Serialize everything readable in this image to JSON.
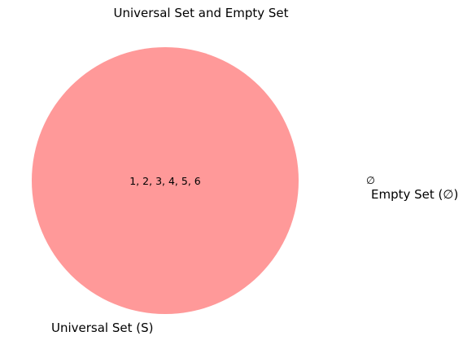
{
  "title": "Universal Set and Empty Set",
  "universal_set": {
    "label": "Universal Set (S)",
    "elements_text": "1, 2, 3, 4, 5, 6",
    "fill_color": "#ff9999"
  },
  "empty_set": {
    "symbol": "∅",
    "label": "Empty Set (∅)"
  }
}
